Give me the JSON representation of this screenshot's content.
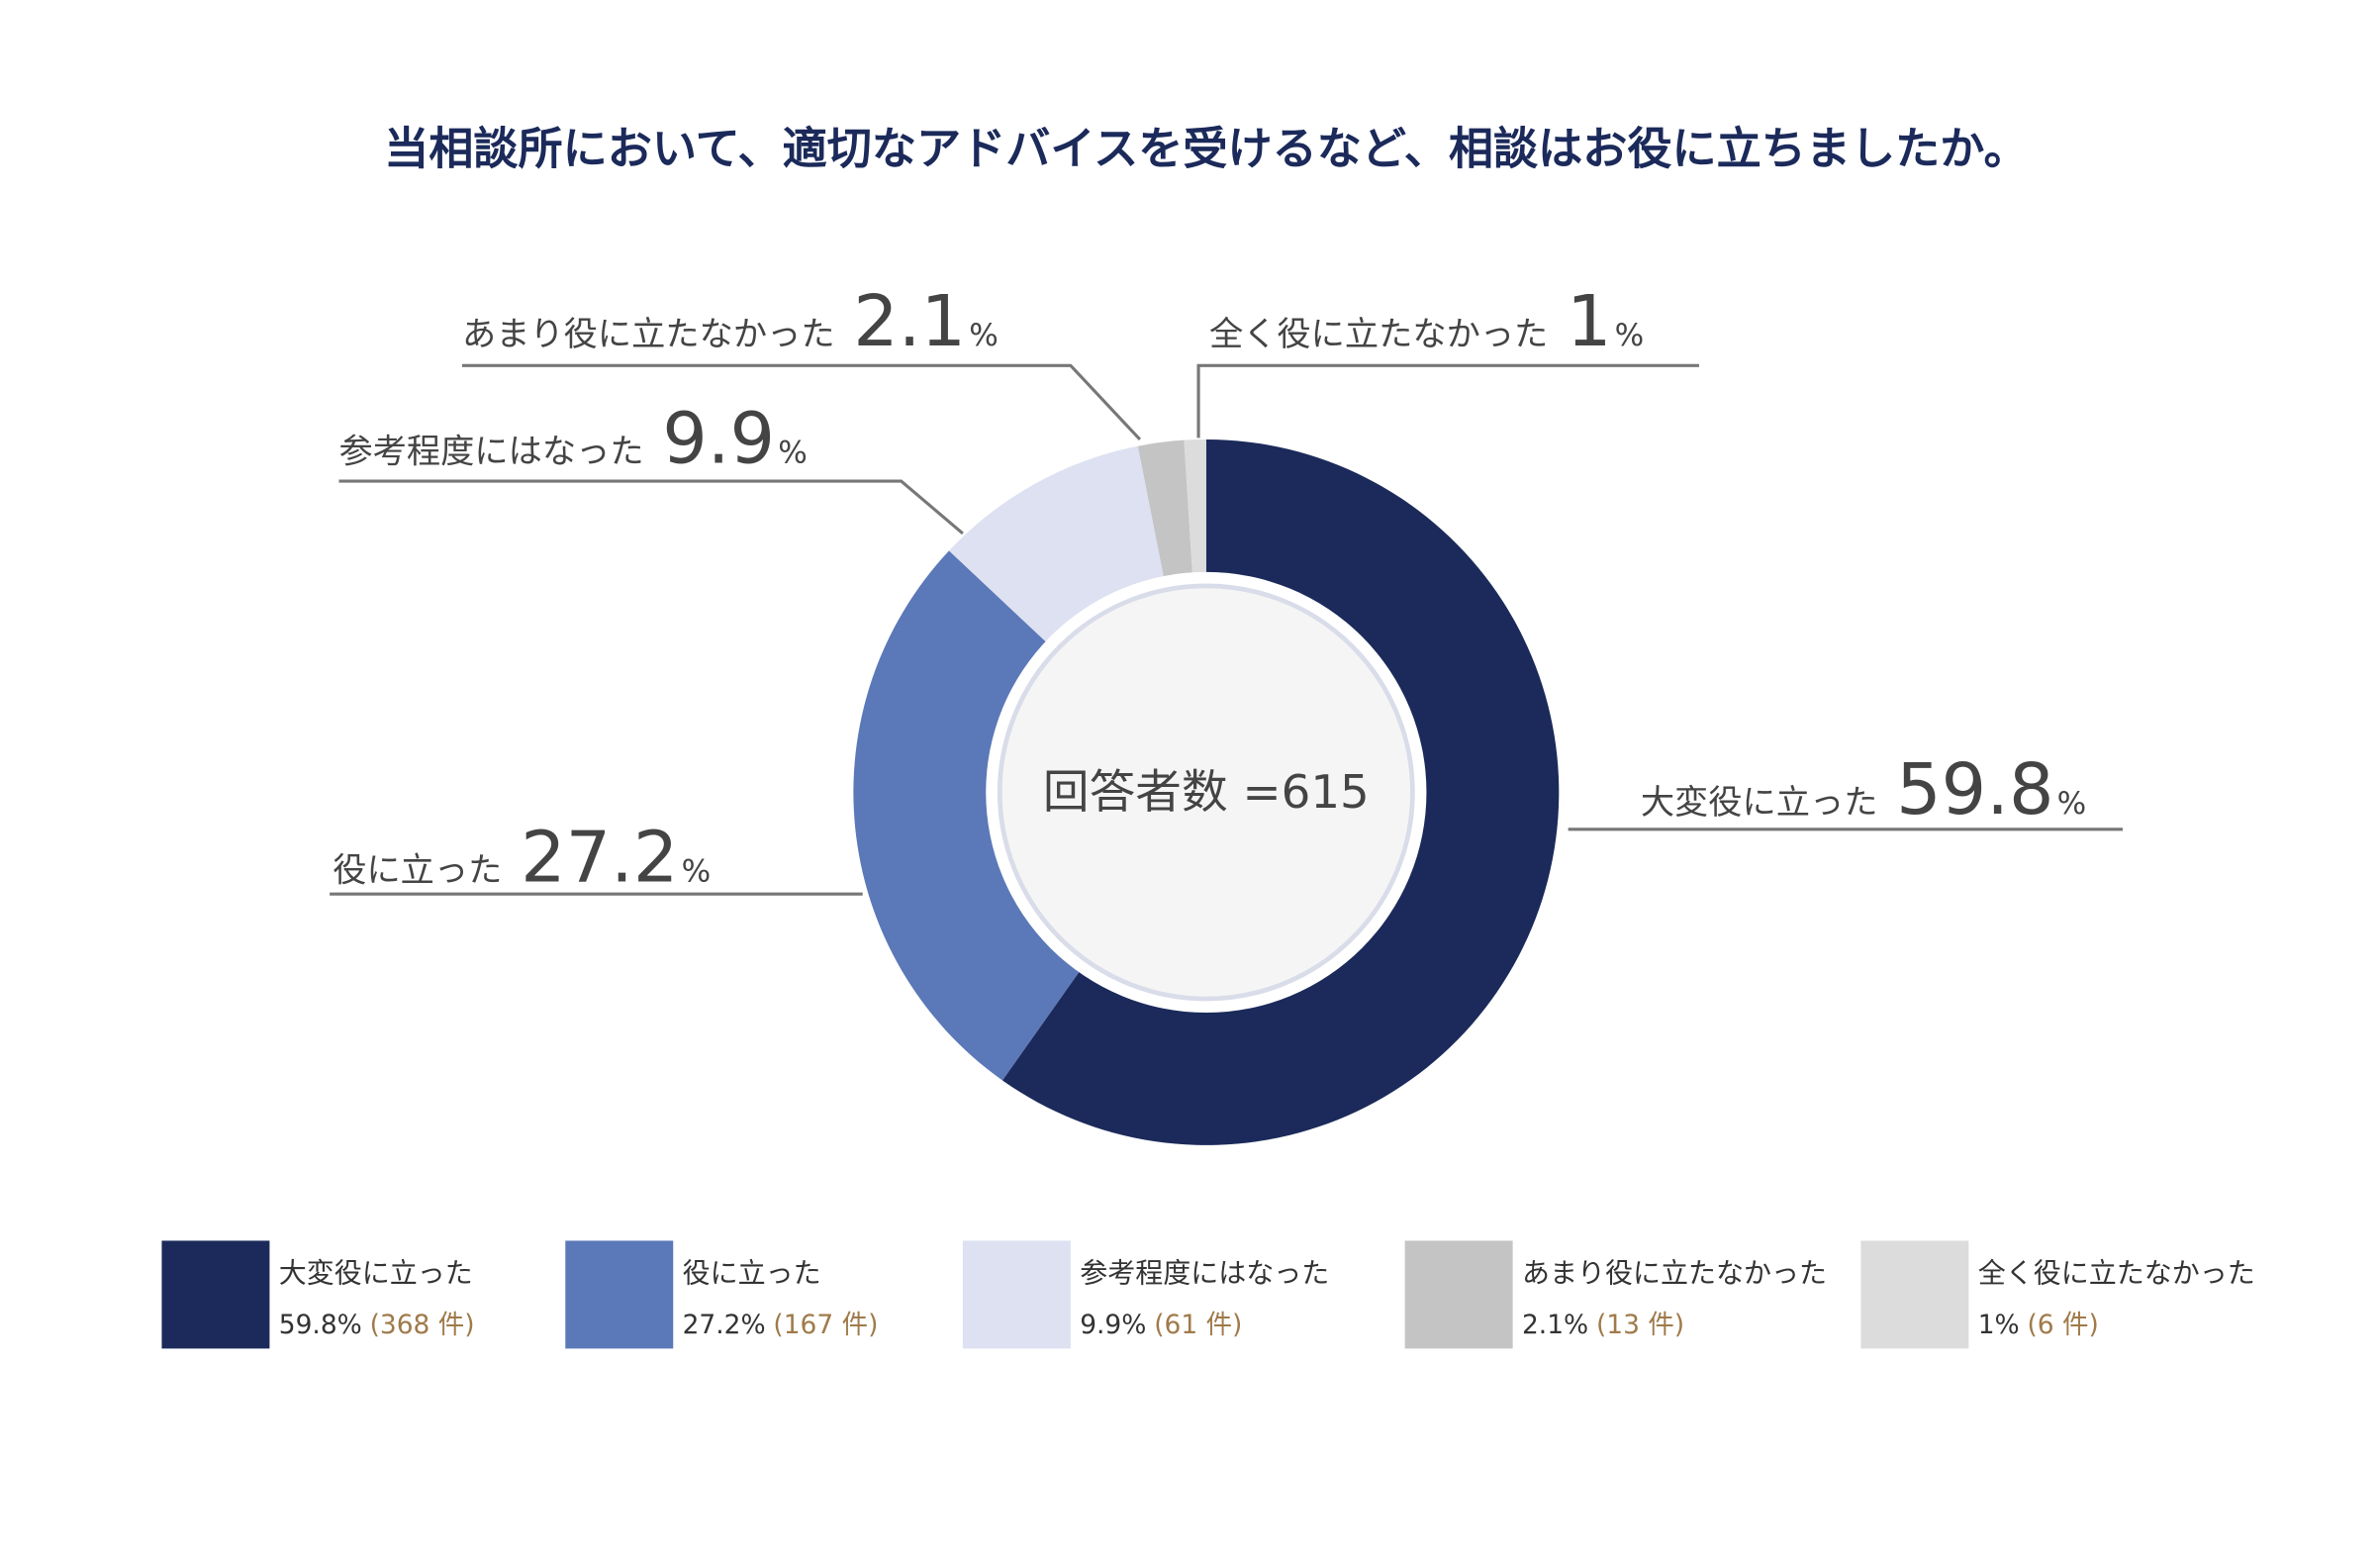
{
  "chart_data": {
    "type": "donut",
    "title": "当相談所において、適切なアドバイスを受けるなど、相談はお役に立ちましたか。",
    "center_label": "回答者数 =615",
    "unit": "%",
    "categories": [
      "大変役に立った",
      "役に立った",
      "参考程度にはなった",
      "あまり役に立たなかった",
      "全く役に立たなかった"
    ],
    "values": [
      59.8,
      27.2,
      9.9,
      2.1,
      1
    ],
    "value_labels": [
      "59.8%",
      "27.2%",
      "9.9%",
      "2.1%",
      "1%"
    ],
    "count_labels": [
      "(368 件)",
      "(167 件)",
      "(61 件)",
      "(13 件)",
      "(6 件)"
    ],
    "colors": [
      "#1b2a5a",
      "#5b78b8",
      "#dde1f1",
      "#c4c4c4",
      "#dcdcdc"
    ]
  }
}
